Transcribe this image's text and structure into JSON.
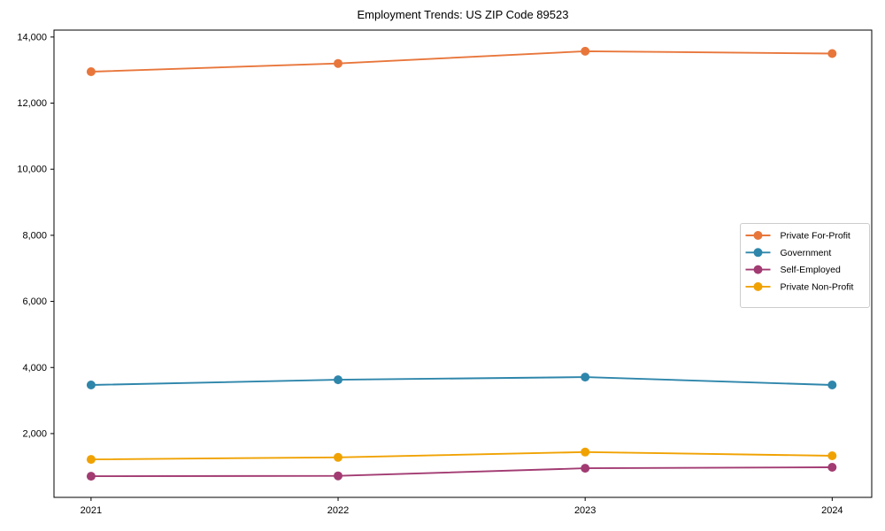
{
  "figure": {
    "title": "Employment Trends: US ZIP Code 89523"
  },
  "chart_data": {
    "type": "line",
    "title": "Employment Trends: US ZIP Code 89523",
    "xlabel": "",
    "ylabel": "",
    "x": [
      2021,
      2022,
      2023,
      2024
    ],
    "series": [
      {
        "name": "Private For-Profit",
        "color": "#E8763B",
        "values": [
          12950,
          13200,
          13570,
          13500
        ]
      },
      {
        "name": "Government",
        "color": "#2E86AB",
        "values": [
          3470,
          3630,
          3710,
          3470
        ]
      },
      {
        "name": "Self-Employed",
        "color": "#A23B72",
        "values": [
          710,
          720,
          950,
          980
        ]
      },
      {
        "name": "Private Non-Profit",
        "color": "#F0A202",
        "values": [
          1220,
          1280,
          1440,
          1330
        ]
      }
    ],
    "xticks": {
      "values": [
        2021,
        2022,
        2023,
        2024
      ],
      "labels": [
        "2021",
        "2022",
        "2023",
        "2024"
      ]
    },
    "yticks": [
      2000,
      4000,
      6000,
      8000,
      10000,
      12000,
      14000
    ],
    "ytick_labels": [
      "2,000",
      "4,000",
      "6,000",
      "8,000",
      "10,000",
      "12,000",
      "14,000"
    ],
    "xlim": [
      2020.85,
      2024.16
    ],
    "ylim": [
      70,
      14210
    ],
    "grid": false,
    "legend": {
      "position": "right-center",
      "entries": [
        "Private For-Profit",
        "Government",
        "Self-Employed",
        "Private Non-Profit"
      ]
    },
    "marker": "circle",
    "axis_color": "#000000",
    "background_color": "#ffffff"
  }
}
